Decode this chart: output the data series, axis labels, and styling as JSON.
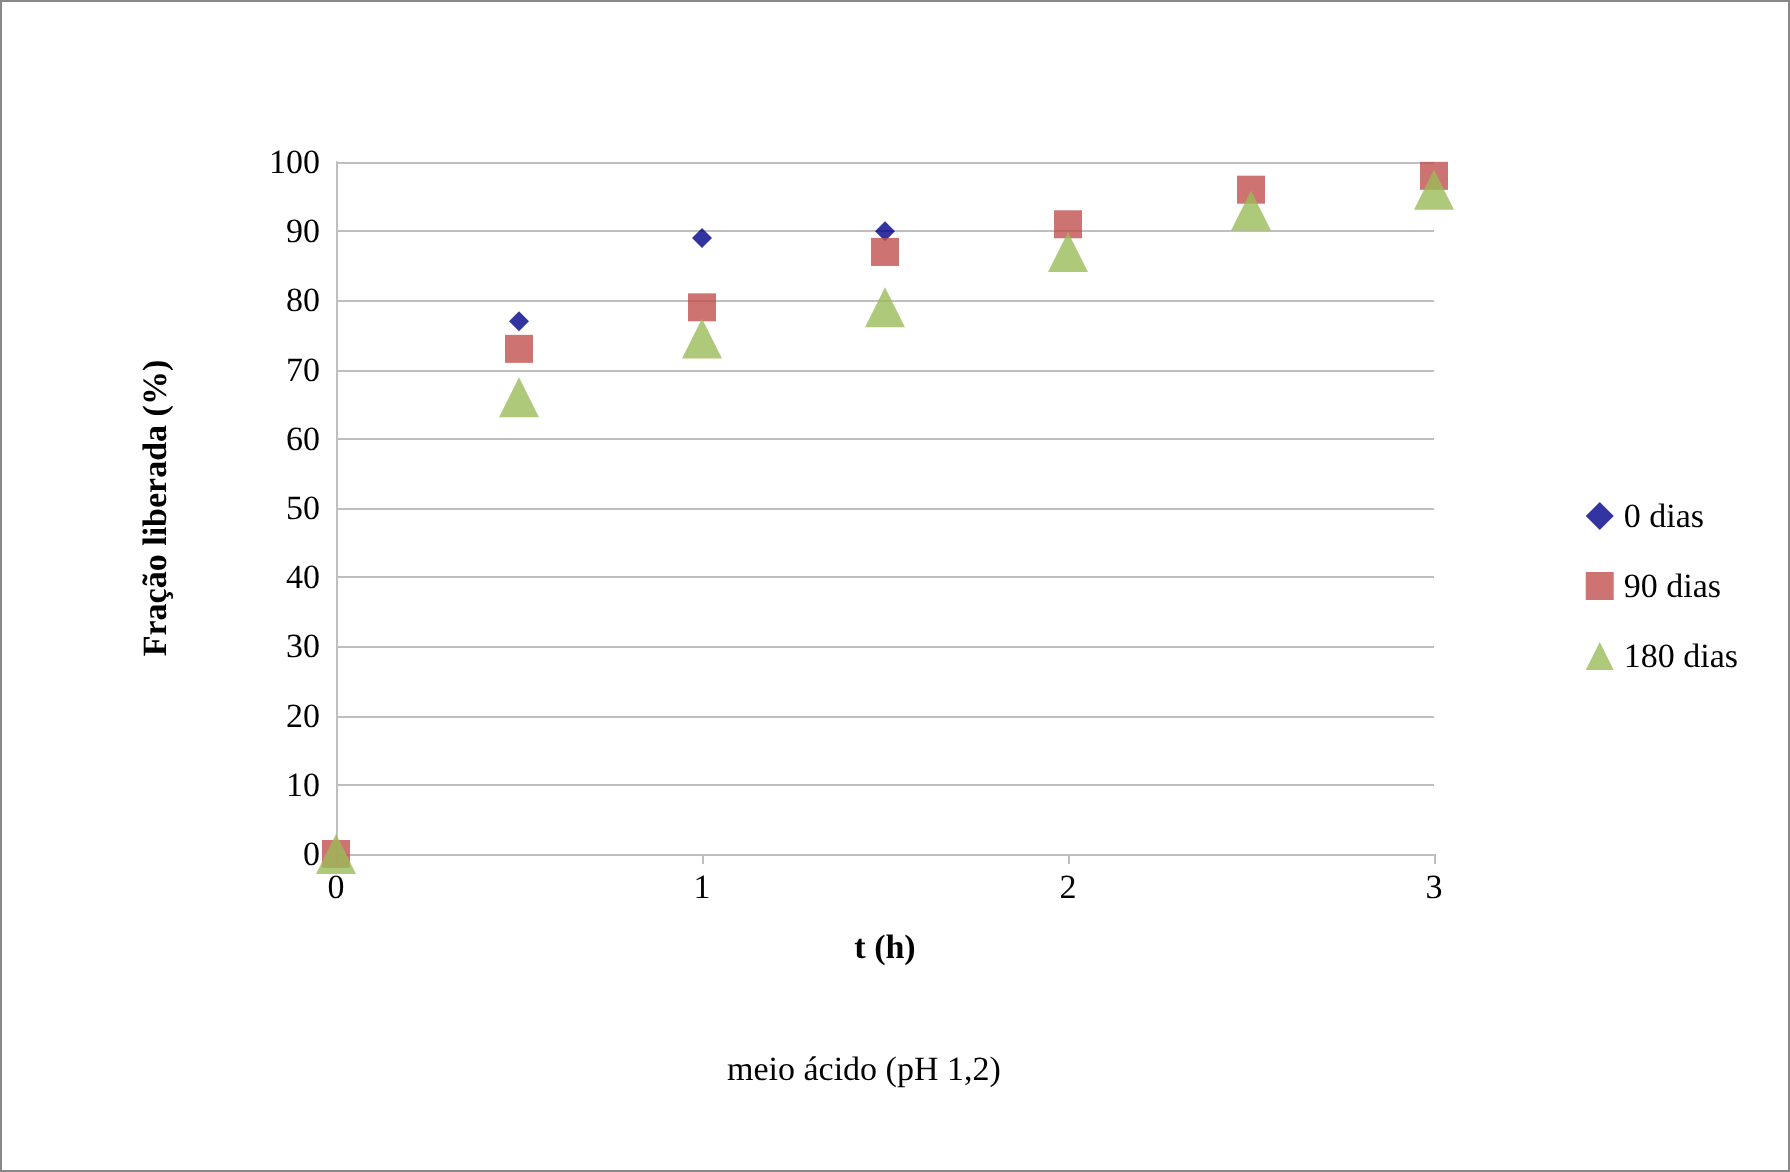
{
  "chart_data": {
    "type": "scatter",
    "xlabel": "t (h)",
    "ylabel": "Fração liberada (%)",
    "annotations": [
      "meio ácido (pH 1,2)"
    ],
    "x": [
      0,
      0.5,
      1,
      1.5,
      2,
      2.5,
      3
    ],
    "series": [
      {
        "name": "0 dias",
        "color": "#00008b",
        "marker": "diamond",
        "values": [
          null,
          77,
          89,
          90,
          null,
          null,
          null
        ]
      },
      {
        "name": "90 dias",
        "color": "#c0504d",
        "marker": "square",
        "values": [
          0,
          73,
          79,
          87,
          91,
          96,
          98
        ]
      },
      {
        "name": "180 dias",
        "color": "#9bbb59",
        "marker": "triangle",
        "values": [
          0,
          66,
          74.5,
          79,
          87,
          93,
          96
        ]
      }
    ],
    "xlim": [
      0,
      3
    ],
    "xticks": [
      0,
      1,
      2,
      3
    ],
    "ylim": [
      0,
      100
    ],
    "yticks": [
      0,
      10,
      20,
      30,
      40,
      50,
      60,
      70,
      80,
      90,
      100
    ],
    "grid": "y",
    "legend": "right"
  }
}
